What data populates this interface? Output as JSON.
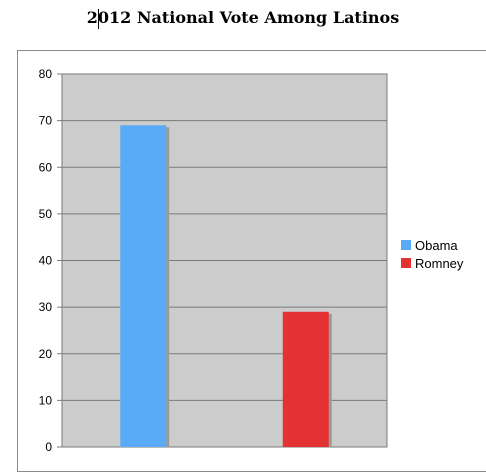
{
  "chart_data": {
    "type": "bar",
    "title": "2012 National Vote Among Latinos",
    "categories": [
      "Obama",
      "Romney"
    ],
    "series": [
      {
        "name": "Obama",
        "values": [
          69,
          null
        ],
        "color": "#5aabf7"
      },
      {
        "name": "Romney",
        "values": [
          null,
          29
        ],
        "color": "#e43232"
      }
    ],
    "ylim": [
      0,
      80
    ],
    "yticks": [
      0,
      10,
      20,
      30,
      40,
      50,
      60,
      70,
      80
    ],
    "grid": true,
    "legend": "right",
    "plot_background": "#cccccc"
  }
}
